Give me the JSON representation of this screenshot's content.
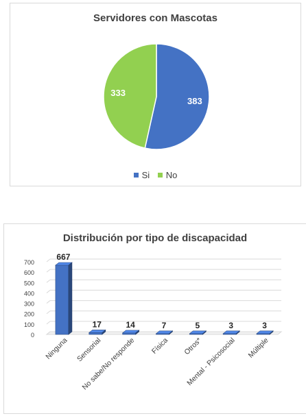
{
  "chart_data": [
    {
      "type": "pie",
      "title": "Servidores con Mascotas",
      "categories": [
        "Si",
        "No"
      ],
      "values": [
        383,
        333
      ],
      "colors": [
        "#4472c4",
        "#92d050"
      ],
      "data_labels": [
        "383",
        "333"
      ],
      "legend_placement": "bottom",
      "legend": [
        "Si",
        "No"
      ]
    },
    {
      "type": "bar",
      "title": "Distribución por tipo de discapacidad",
      "categories": [
        "Ninguna",
        "Sensorial",
        "No sabe/No responde",
        "Física",
        "Otros*",
        "Mental - Psicosocial",
        "Múltiple"
      ],
      "values": [
        667,
        17,
        14,
        7,
        5,
        3,
        3
      ],
      "data_labels": [
        "667",
        "17",
        "14",
        "7",
        "5",
        "3",
        "3"
      ],
      "ylim": [
        0,
        700
      ],
      "yticks": [
        "0",
        "100",
        "200",
        "300",
        "400",
        "500",
        "600",
        "700"
      ],
      "grid": true,
      "style": "3d-column",
      "bar_color": "#4472c4",
      "xlabel": "",
      "ylabel": ""
    }
  ]
}
